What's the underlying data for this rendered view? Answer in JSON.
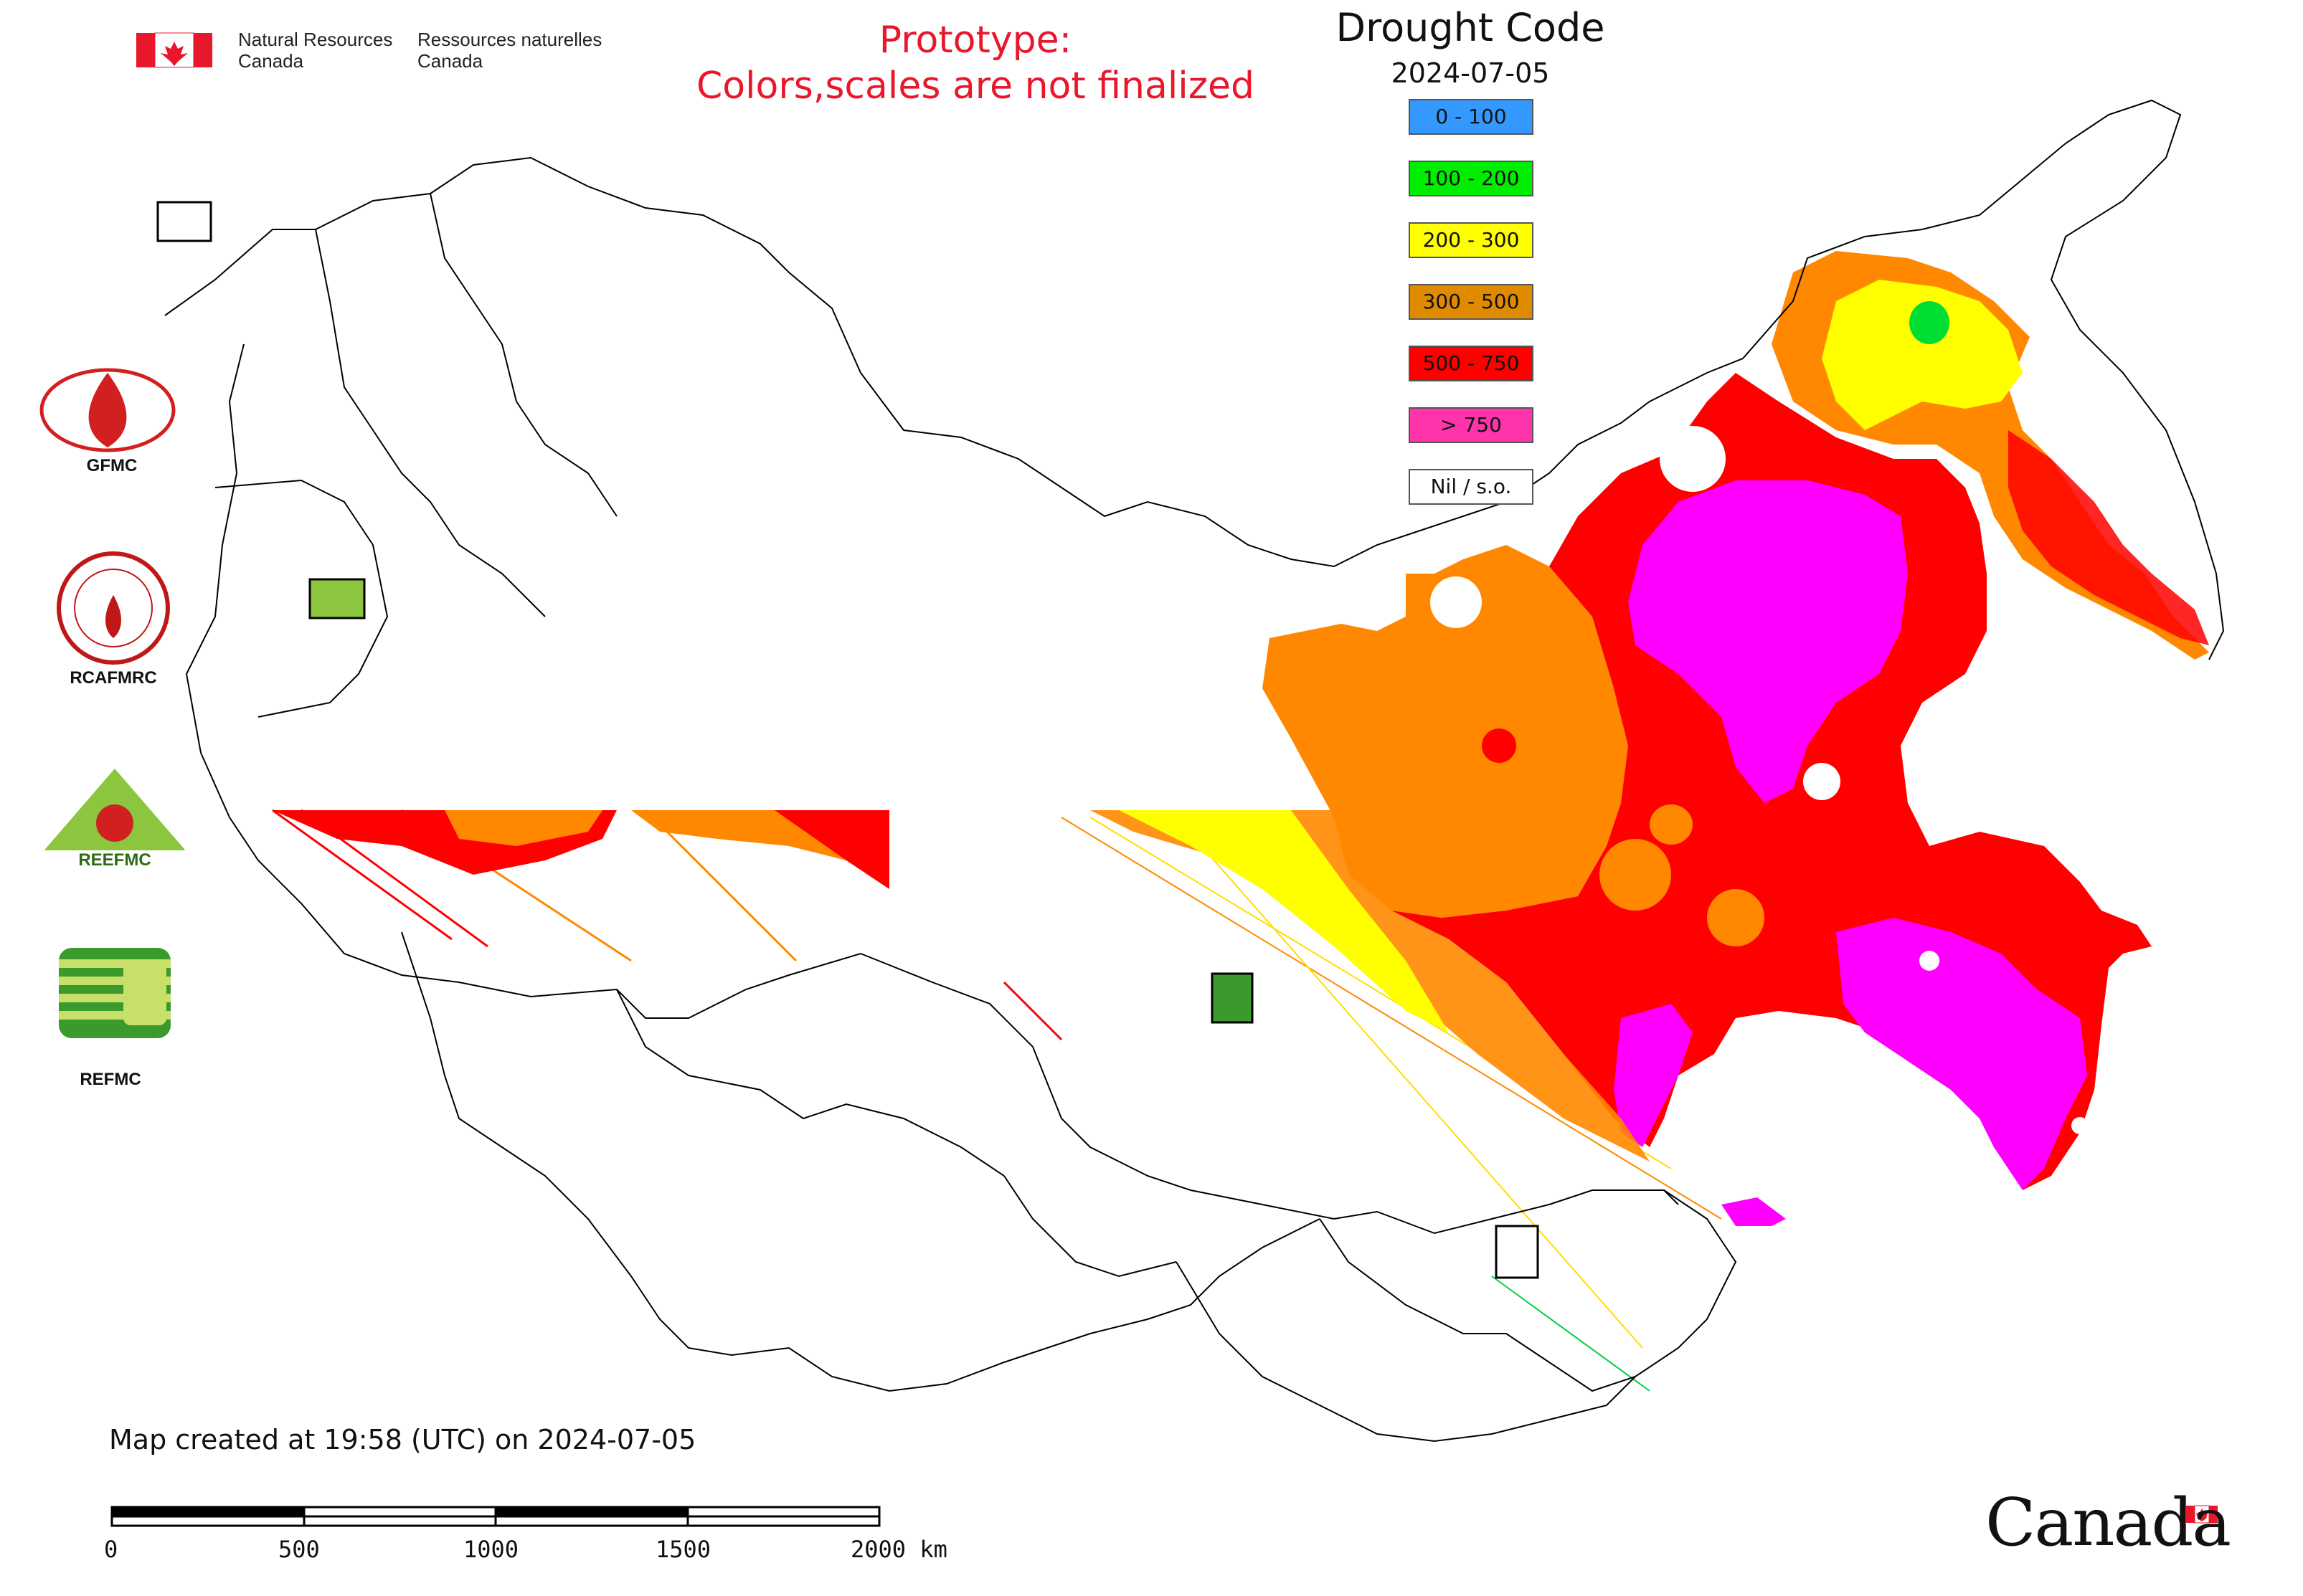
{
  "header": {
    "agency_en": [
      "Natural Resources",
      "Canada"
    ],
    "agency_fr": [
      "Ressources naturelles",
      "Canada"
    ],
    "prototype_line1": "Prototype:",
    "prototype_line2": "Colors,scales are not finalized"
  },
  "legend": {
    "title": "Drought Code",
    "date": "2024-07-05",
    "classes": [
      {
        "label": "0 - 100",
        "color": "#3399ff"
      },
      {
        "label": "100 - 200",
        "color": "#00ee00"
      },
      {
        "label": "200 - 300",
        "color": "#ffff00"
      },
      {
        "label": "300 - 500",
        "color": "#e08a00"
      },
      {
        "label": "500 - 750",
        "color": "#ff0000"
      },
      {
        "label": "> 750",
        "color": "#ff33aa"
      },
      {
        "label": "Nil / s.o.",
        "color": "#ffffff"
      }
    ]
  },
  "logos": {
    "gfmc": "GFMC",
    "rcafmrc": "RCAFMRC",
    "reefmc_text": "REEFMC",
    "refmc": "REFMC"
  },
  "footer": {
    "created": "Map created at 19:58 (UTC) on 2024-07-05",
    "scale_labels": [
      "0",
      "500",
      "1000",
      "1500",
      "2000 km"
    ]
  },
  "wordmark": "Canada"
}
